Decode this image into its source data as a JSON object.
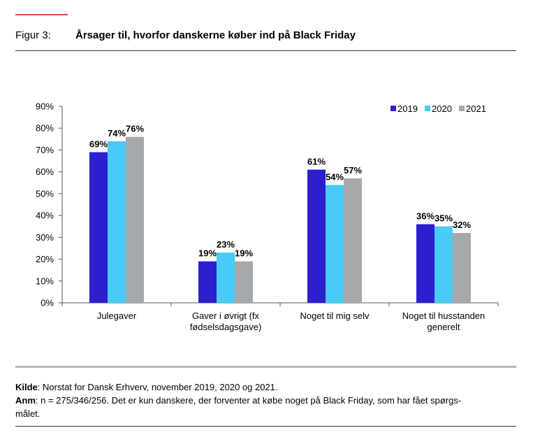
{
  "header": {
    "label": "Figur 3:",
    "title": "Årsager til, hvorfor danskerne køber ind på Black Friday"
  },
  "chart_data": {
    "type": "bar",
    "categories": [
      [
        "Julegaver"
      ],
      [
        "Gaver i øvrigt (fx",
        "fødselsdagsgave)"
      ],
      [
        "Noget til mig selv"
      ],
      [
        "Noget til husstanden",
        "generelt"
      ]
    ],
    "series": [
      {
        "name": "2019",
        "color": "#2b1fcf",
        "values": [
          69,
          19,
          61,
          36
        ]
      },
      {
        "name": "2020",
        "color": "#48cbf6",
        "values": [
          74,
          23,
          54,
          35
        ]
      },
      {
        "name": "2021",
        "color": "#a6a9ab",
        "values": [
          76,
          19,
          57,
          32
        ]
      }
    ],
    "yticks": [
      "0%",
      "10%",
      "20%",
      "30%",
      "40%",
      "50%",
      "60%",
      "70%",
      "80%",
      "90%"
    ],
    "ylim": [
      0,
      90
    ],
    "value_suffix": "%",
    "legend_position": "top-right",
    "grid": false
  },
  "notes": {
    "source_label": "Kilde",
    "source_text": ": Norstat for Dansk Erhverv, november 2019, 2020 og 2021.",
    "note_label": "Anm",
    "note_text_line1": ": n = 275/346/256. Det er kun danskere, der forventer at købe noget på Black Friday, som har fået spørgs-",
    "note_text_line2": "målet."
  }
}
